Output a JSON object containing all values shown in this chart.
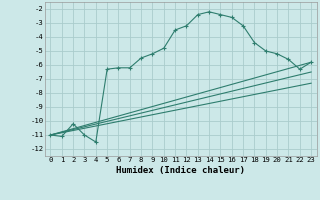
{
  "xlabel": "Humidex (Indice chaleur)",
  "bg_color": "#cce8e8",
  "grid_color": "#aacccc",
  "line_color": "#2e7d6e",
  "xlim": [
    -0.5,
    23.5
  ],
  "ylim": [
    -12.5,
    -1.5
  ],
  "xticks": [
    0,
    1,
    2,
    3,
    4,
    5,
    6,
    7,
    8,
    9,
    10,
    11,
    12,
    13,
    14,
    15,
    16,
    17,
    18,
    19,
    20,
    21,
    22,
    23
  ],
  "yticks": [
    -2,
    -3,
    -4,
    -5,
    -6,
    -7,
    -8,
    -9,
    -10,
    -11,
    -12
  ],
  "series1_x": [
    0,
    1,
    2,
    3,
    4,
    5,
    6,
    7,
    8,
    9,
    10,
    11,
    12,
    13,
    14,
    15,
    16,
    17,
    18,
    19,
    20,
    21,
    22,
    23
  ],
  "series1_y": [
    -11.0,
    -11.1,
    -10.2,
    -11.0,
    -11.5,
    -6.3,
    -6.2,
    -6.2,
    -5.5,
    -5.2,
    -4.8,
    -3.5,
    -3.2,
    -2.4,
    -2.2,
    -2.4,
    -2.6,
    -3.2,
    -4.4,
    -5.0,
    -5.2,
    -5.6,
    -6.3,
    -5.8
  ],
  "series2_x": [
    0,
    23
  ],
  "series2_y": [
    -11.0,
    -5.8
  ],
  "series3_x": [
    0,
    23
  ],
  "series3_y": [
    -11.0,
    -6.5
  ],
  "series4_x": [
    0,
    23
  ],
  "series4_y": [
    -11.0,
    -7.3
  ]
}
